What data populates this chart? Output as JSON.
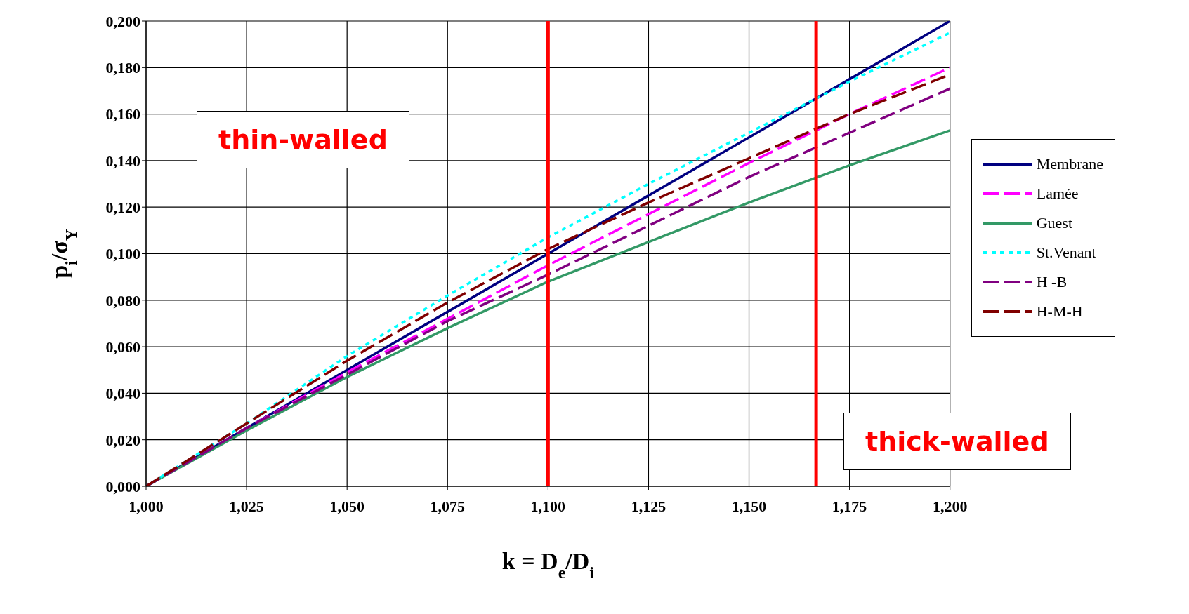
{
  "chart_data": {
    "type": "line",
    "xlabel": "k = D$_{e}$/D$_{i}$",
    "ylabel": "p$_{i}$/σ$_{Y}$",
    "x": [
      1.0,
      1.025,
      1.05,
      1.075,
      1.1,
      1.125,
      1.15,
      1.175,
      1.2
    ],
    "series": [
      {
        "name": "Membrane",
        "color": "#000080",
        "line_style": "solid",
        "values": [
          0,
          0.025,
          0.05,
          0.075,
          0.1,
          0.125,
          0.15,
          0.175,
          0.2
        ]
      },
      {
        "name": "Lamée",
        "color": "#ff00ff",
        "line_style": "dashed",
        "values": [
          0,
          0.025,
          0.049,
          0.072,
          0.095,
          0.117,
          0.139,
          0.16,
          0.18
        ]
      },
      {
        "name": "Guest",
        "color": "#339966",
        "line_style": "solid",
        "values": [
          0,
          0.024,
          0.047,
          0.068,
          0.088,
          0.105,
          0.122,
          0.138,
          0.153
        ]
      },
      {
        "name": "St.Venant",
        "color": "#00ffff",
        "line_style": "dotted",
        "values": [
          0,
          0.027,
          0.056,
          0.082,
          0.107,
          0.13,
          0.152,
          0.174,
          0.195
        ]
      },
      {
        "name": "H -B",
        "color": "#800080",
        "line_style": "dashed",
        "values": [
          0,
          0.025,
          0.048,
          0.071,
          0.091,
          0.112,
          0.133,
          0.152,
          0.171
        ]
      },
      {
        "name": "H-M-H",
        "color": "#800000",
        "line_style": "dashed",
        "values": [
          0,
          0.027,
          0.054,
          0.079,
          0.102,
          0.122,
          0.141,
          0.16,
          0.177
        ]
      }
    ],
    "xlim": [
      1.0,
      1.2
    ],
    "xticks": [
      {
        "value": 1.0,
        "label": "1,000"
      },
      {
        "value": 1.025,
        "label": "1,025"
      },
      {
        "value": 1.05,
        "label": "1,050"
      },
      {
        "value": 1.075,
        "label": "1,075"
      },
      {
        "value": 1.1,
        "label": "1,100"
      },
      {
        "value": 1.125,
        "label": "1,125"
      },
      {
        "value": 1.15,
        "label": "1,150"
      },
      {
        "value": 1.175,
        "label": "1,175"
      },
      {
        "value": 1.2,
        "label": "1,200"
      }
    ],
    "ylim": [
      0,
      0.2
    ],
    "yticks": [
      {
        "value": 0,
        "label": "0,000"
      },
      {
        "value": 0.02,
        "label": "0,020"
      },
      {
        "value": 0.04,
        "label": "0,040"
      },
      {
        "value": 0.06,
        "label": "0,060"
      },
      {
        "value": 0.08,
        "label": "0,080"
      },
      {
        "value": 0.1,
        "label": "0,100"
      },
      {
        "value": 0.12,
        "label": "0,120"
      },
      {
        "value": 0.14,
        "label": "0,140"
      },
      {
        "value": 0.16,
        "label": "0,160"
      },
      {
        "value": 0.18,
        "label": "0,180"
      },
      {
        "value": 0.2,
        "label": "0,200"
      }
    ],
    "ref_lines": [
      {
        "axis": "x",
        "value": 1.1,
        "color": "#ff0000"
      },
      {
        "axis": "x",
        "value": 1.1667,
        "color": "#ff0000"
      }
    ],
    "annotations": [
      "thin-walled",
      "thick-walled"
    ],
    "grid": true,
    "legend": "right",
    "marker": "none"
  }
}
